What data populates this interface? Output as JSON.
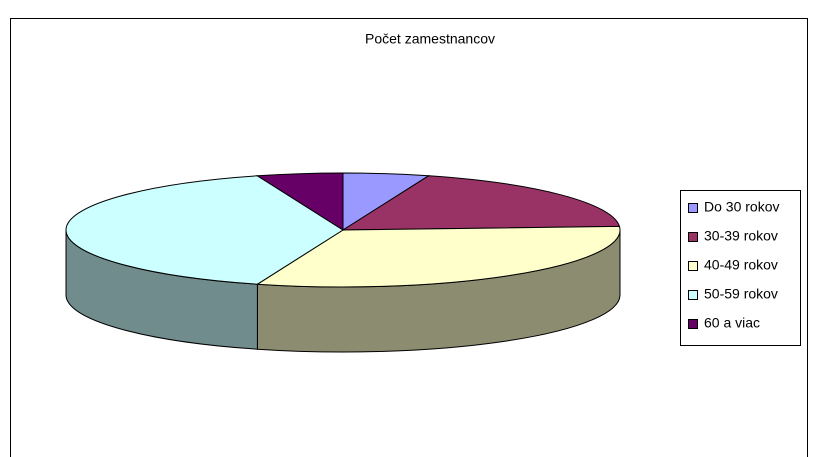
{
  "chart_data": {
    "type": "pie3d",
    "title": "Počet zamestnancov",
    "categories": [
      "Do 30 rokov",
      "30-39 rokov",
      "40-49 rokov",
      "50-59 rokov",
      "60 a viac"
    ],
    "values": [
      5,
      19,
      31,
      40,
      5
    ],
    "colors": [
      "#9999ff",
      "#993366",
      "#ffffcc",
      "#ccffff",
      "#660066"
    ],
    "legend": "right"
  }
}
